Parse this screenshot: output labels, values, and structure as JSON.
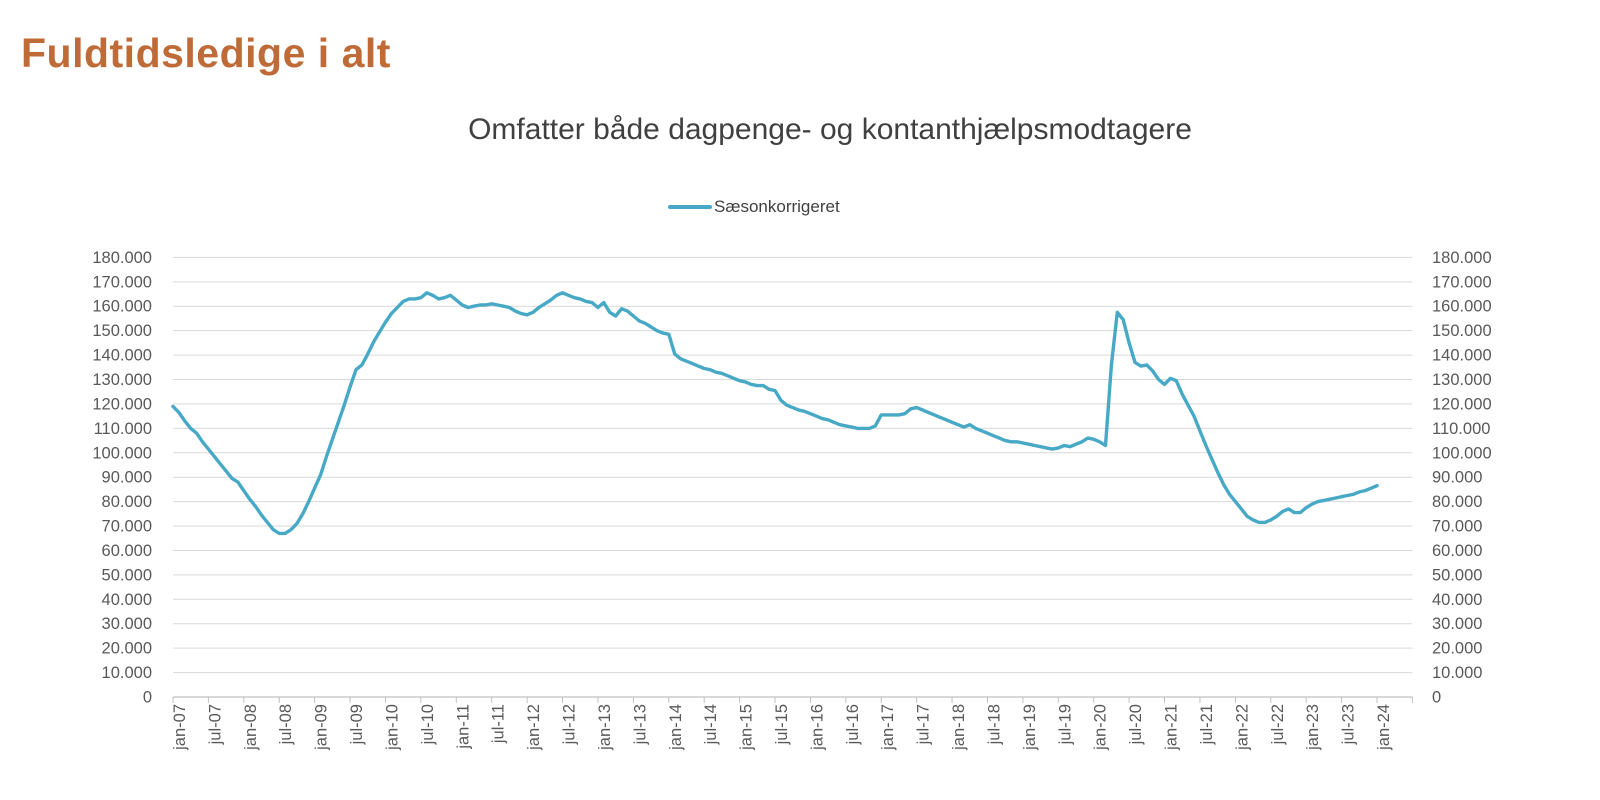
{
  "window": {
    "background": "#FFFFFF"
  },
  "header": {
    "title": "Fuldtidsledige i alt"
  },
  "chart_data": {
    "type": "line",
    "title": "Omfatter både dagpenge- og kontanthjælpsmodtagere",
    "legend": {
      "position": "top-center",
      "label": "Sæsonkorrigeret"
    },
    "x": {
      "unit": "month",
      "start": "jan-07",
      "end": "jan-24",
      "tick_interval_months": 6,
      "tick_labels": [
        "jan-07",
        "jul-07",
        "jan-08",
        "jul-08",
        "jan-09",
        "jul-09",
        "jan-10",
        "jul-10",
        "jan-11",
        "jul-11",
        "jan-12",
        "jul-12",
        "jan-13",
        "jul-13",
        "jan-14",
        "jul-14",
        "jan-15",
        "jul-15",
        "jan-16",
        "jul-16",
        "jan-17",
        "jul-17",
        "jan-18",
        "jul-18",
        "jan-19",
        "jul-19",
        "jan-20",
        "jul-20",
        "jan-21",
        "jul-21",
        "jan-22",
        "jul-22",
        "jan-23",
        "jul-23",
        "jan-24"
      ]
    },
    "y": {
      "min": 0,
      "max": 180000,
      "tick_step": 10000,
      "sides": "left-and-right",
      "tick_labels": [
        "0",
        "10.000",
        "20.000",
        "30.000",
        "40.000",
        "50.000",
        "60.000",
        "70.000",
        "80.000",
        "90.000",
        "100.000",
        "110.000",
        "120.000",
        "130.000",
        "140.000",
        "150.000",
        "160.000",
        "170.000",
        "180.000"
      ]
    },
    "grid": true,
    "series": [
      {
        "name": "Sæsonkorrigeret",
        "color": "#47A9C6",
        "frequency": "monthly",
        "first_point": "jan-07",
        "last_point": "jan-24",
        "values": [
          119000,
          116500,
          113000,
          110000,
          108000,
          104500,
          101500,
          98500,
          95500,
          92500,
          89500,
          88000,
          84500,
          81000,
          78000,
          74500,
          71500,
          68500,
          67000,
          67000,
          68500,
          71000,
          75000,
          80000,
          85500,
          91000,
          98500,
          105500,
          112500,
          119500,
          127000,
          134000,
          136000,
          140500,
          145500,
          149500,
          153500,
          157000,
          159500,
          162000,
          163000,
          163000,
          163500,
          165500,
          164500,
          163000,
          163500,
          164500,
          162500,
          160500,
          159500,
          160000,
          160500,
          160500,
          161000,
          160500,
          160000,
          159500,
          158000,
          157000,
          156500,
          157500,
          159500,
          161000,
          162500,
          164500,
          165500,
          164500,
          163500,
          163000,
          162000,
          161500,
          159500,
          161500,
          157500,
          156000,
          159000,
          158000,
          156000,
          154000,
          153000,
          151500,
          150000,
          149000,
          148500,
          140500,
          138500,
          137500,
          136500,
          135500,
          134500,
          134000,
          133000,
          132500,
          131500,
          130500,
          129500,
          129000,
          128000,
          127500,
          127500,
          126000,
          125500,
          121500,
          119500,
          118500,
          117500,
          117000,
          116000,
          115000,
          114000,
          113500,
          112500,
          111500,
          111000,
          110500,
          110000,
          110000,
          110000,
          111000,
          115500,
          115500,
          115500,
          115500,
          116000,
          118000,
          118500,
          117500,
          116500,
          115500,
          114500,
          113500,
          112500,
          111500,
          110500,
          111500,
          110000,
          109000,
          108000,
          107000,
          106000,
          105000,
          104500,
          104500,
          104000,
          103500,
          103000,
          102500,
          102000,
          101500,
          102000,
          103000,
          102500,
          103500,
          104500,
          106000,
          105500,
          104500,
          103000,
          136000,
          157500,
          154500,
          145000,
          137000,
          135500,
          136000,
          133500,
          130000,
          128000,
          130500,
          129500,
          124000,
          119500,
          115000,
          109000,
          103000,
          97500,
          92000,
          87000,
          83000,
          80000,
          77000,
          74000,
          72500,
          71500,
          71500,
          72500,
          74000,
          76000,
          77000,
          75500,
          75500,
          77500,
          79000,
          80000,
          80500,
          81000,
          81500,
          82000,
          82500,
          83000,
          84000,
          84500,
          85500,
          86500
        ]
      }
    ],
    "style": {
      "line_width": 3.4,
      "gridline_color": "#D9D9D9",
      "axis_color": "#C0C0C0",
      "tick_label_color": "#595959",
      "chart_title_color": "#404040",
      "legend_text_color": "#404040",
      "header_title_color": "#BF6B38"
    }
  }
}
